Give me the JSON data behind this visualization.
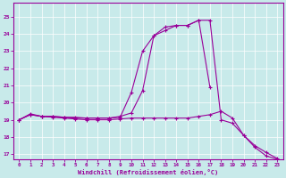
{
  "xlabel": "Windchill (Refroidissement éolien,°C)",
  "background_color": "#c8eaea",
  "line_color": "#990099",
  "grid_color": "#ffffff",
  "xlim": [
    -0.5,
    23.5
  ],
  "ylim": [
    16.7,
    25.8
  ],
  "yticks": [
    17,
    18,
    19,
    20,
    21,
    22,
    23,
    24,
    25
  ],
  "xticks": [
    0,
    1,
    2,
    3,
    4,
    5,
    6,
    7,
    8,
    9,
    10,
    11,
    12,
    13,
    14,
    15,
    16,
    17,
    18,
    19,
    20,
    21,
    22,
    23
  ],
  "line1_x": [
    0,
    1,
    2,
    3,
    4,
    5,
    6,
    7,
    8,
    9,
    10,
    11,
    12,
    13,
    14,
    15,
    16,
    17,
    18,
    19,
    20,
    21,
    22,
    23
  ],
  "line1_y": [
    19.0,
    19.35,
    19.2,
    19.2,
    19.15,
    19.15,
    19.1,
    19.1,
    19.1,
    19.15,
    20.6,
    23.0,
    23.9,
    24.4,
    24.5,
    24.5,
    24.8,
    24.8,
    19.0,
    18.8,
    18.1,
    17.4,
    16.9,
    16.7
  ],
  "line2_x": [
    0,
    1,
    2,
    3,
    4,
    5,
    6,
    7,
    8,
    9,
    10,
    11,
    12,
    13,
    14,
    15,
    16,
    17
  ],
  "line2_y": [
    19.0,
    19.3,
    19.2,
    19.2,
    19.15,
    19.1,
    19.1,
    19.1,
    19.1,
    19.2,
    19.4,
    20.7,
    23.9,
    24.2,
    24.5,
    24.5,
    24.8,
    20.9
  ],
  "line3_x": [
    0,
    1,
    2,
    3,
    4,
    5,
    6,
    7,
    8,
    9,
    10,
    11,
    12,
    13,
    14,
    15,
    16,
    17,
    18,
    19,
    20,
    21,
    22,
    23
  ],
  "line3_y": [
    19.0,
    19.3,
    19.2,
    19.15,
    19.1,
    19.05,
    19.0,
    19.0,
    19.0,
    19.05,
    19.1,
    19.1,
    19.1,
    19.1,
    19.1,
    19.1,
    19.2,
    19.3,
    19.5,
    19.1,
    18.1,
    17.5,
    17.1,
    16.75
  ]
}
